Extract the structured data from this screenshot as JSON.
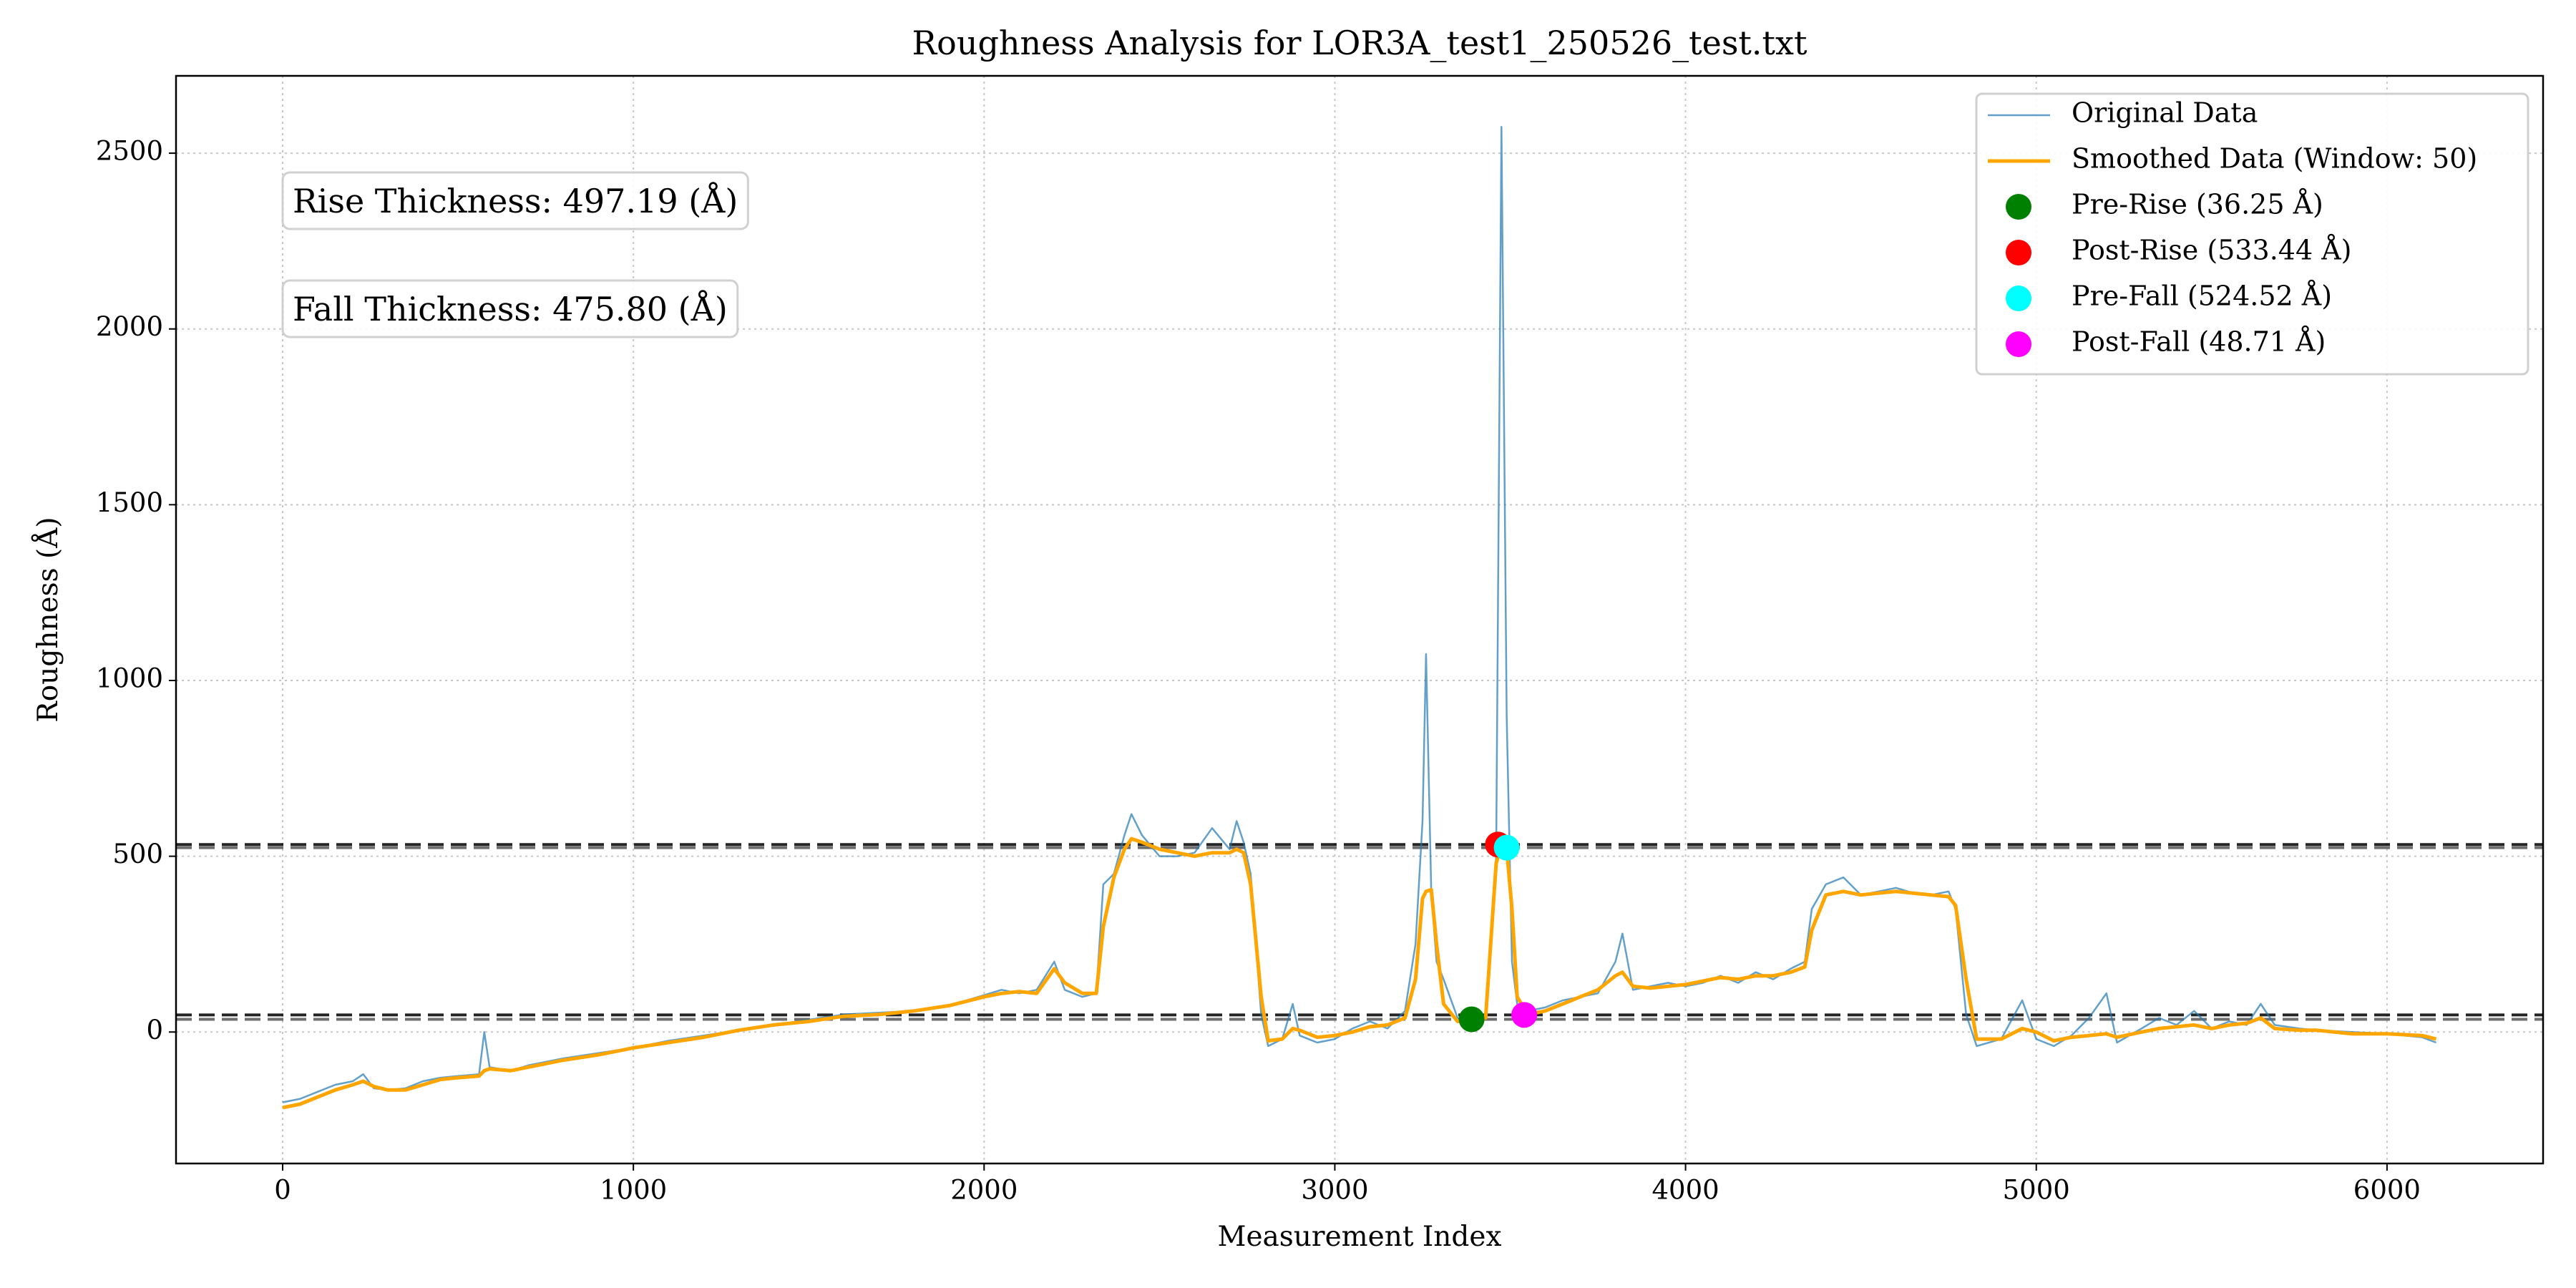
{
  "chart_data": {
    "type": "line",
    "title": "Roughness Analysis for LOR3A_test1_250526_test.txt",
    "x_label": "Measurement Index",
    "y_label": "Roughness (Å)",
    "xlim": [
      -304,
      6445
    ],
    "ylim": [
      -374,
      2720
    ],
    "xticks": [
      0,
      1000,
      2000,
      3000,
      4000,
      5000,
      6000
    ],
    "yticks": [
      0,
      500,
      1000,
      1500,
      2000,
      2500
    ],
    "grid": true,
    "legend": "upper right",
    "x": [
      0,
      50,
      100,
      150,
      200,
      230,
      260,
      300,
      350,
      400,
      450,
      500,
      560,
      575,
      590,
      650,
      700,
      800,
      900,
      1000,
      1100,
      1200,
      1300,
      1400,
      1500,
      1600,
      1700,
      1800,
      1900,
      2000,
      2050,
      2100,
      2150,
      2200,
      2230,
      2280,
      2320,
      2340,
      2370,
      2400,
      2420,
      2450,
      2500,
      2550,
      2600,
      2650,
      2700,
      2720,
      2740,
      2760,
      2790,
      2810,
      2850,
      2880,
      2900,
      2950,
      3000,
      3050,
      3100,
      3150,
      3200,
      3230,
      3250,
      3260,
      3275,
      3290,
      3310,
      3350,
      3390,
      3430,
      3460,
      3475,
      3490,
      3505,
      3520,
      3550,
      3600,
      3650,
      3700,
      3750,
      3800,
      3820,
      3850,
      3900,
      3950,
      4000,
      4050,
      4100,
      4150,
      4200,
      4250,
      4300,
      4340,
      4360,
      4400,
      4450,
      4500,
      4550,
      4600,
      4650,
      4700,
      4750,
      4770,
      4800,
      4830,
      4900,
      4960,
      5000,
      5050,
      5100,
      5150,
      5200,
      5230,
      5300,
      5350,
      5400,
      5450,
      5500,
      5550,
      5600,
      5640,
      5680,
      5750,
      5800,
      5900,
      6000,
      6100,
      6140
    ],
    "series": [
      {
        "name": "Original Data",
        "color": "#1f77b4",
        "values": [
          -200,
          -190,
          -170,
          -150,
          -140,
          -120,
          -160,
          -165,
          -160,
          -140,
          -130,
          -125,
          -120,
          0,
          -100,
          -110,
          -95,
          -75,
          -60,
          -45,
          -25,
          -10,
          5,
          20,
          35,
          50,
          55,
          60,
          75,
          105,
          120,
          110,
          120,
          200,
          120,
          100,
          110,
          420,
          450,
          560,
          620,
          560,
          500,
          500,
          510,
          580,
          520,
          600,
          540,
          450,
          50,
          -40,
          -20,
          80,
          -10,
          -30,
          -20,
          10,
          30,
          10,
          60,
          250,
          600,
          1075,
          400,
          200,
          150,
          40,
          36,
          40,
          500,
          2575,
          900,
          200,
          80,
          60,
          70,
          90,
          100,
          110,
          200,
          280,
          120,
          130,
          140,
          130,
          140,
          160,
          140,
          170,
          150,
          180,
          200,
          350,
          420,
          440,
          390,
          400,
          410,
          395,
          390,
          400,
          350,
          50,
          -40,
          -20,
          90,
          -20,
          -40,
          -10,
          40,
          110,
          -30,
          10,
          40,
          20,
          60,
          10,
          30,
          20,
          80,
          20,
          10,
          5,
          0,
          -5,
          -15,
          -30
        ]
      },
      {
        "name": "Smoothed Data (Window: 50)",
        "color": "#ffa500",
        "values": [
          -215,
          -205,
          -185,
          -165,
          -150,
          -140,
          -155,
          -165,
          -165,
          -150,
          -135,
          -130,
          -125,
          -110,
          -105,
          -110,
          -100,
          -80,
          -65,
          -45,
          -30,
          -15,
          5,
          20,
          30,
          45,
          50,
          60,
          75,
          100,
          110,
          115,
          110,
          180,
          140,
          110,
          110,
          300,
          440,
          520,
          550,
          540,
          520,
          510,
          500,
          510,
          510,
          520,
          510,
          420,
          100,
          -25,
          -20,
          10,
          5,
          -15,
          -10,
          0,
          15,
          20,
          40,
          150,
          380,
          400,
          405,
          250,
          80,
          30,
          36,
          40,
          480,
          530,
          520,
          350,
          100,
          50,
          60,
          80,
          100,
          120,
          160,
          170,
          130,
          125,
          130,
          135,
          145,
          155,
          150,
          160,
          160,
          170,
          185,
          290,
          390,
          400,
          390,
          395,
          400,
          395,
          390,
          385,
          360,
          150,
          -20,
          -20,
          10,
          0,
          -25,
          -15,
          -10,
          -5,
          -15,
          0,
          10,
          15,
          20,
          10,
          20,
          25,
          40,
          10,
          5,
          5,
          -5,
          -5,
          -10,
          -20
        ]
      }
    ],
    "markers": [
      {
        "name": "Pre-Rise (36.25 Å)",
        "color": "#008000",
        "x": 3390,
        "y": 36.25
      },
      {
        "name": "Post-Rise (533.44 Å)",
        "color": "#ff0000",
        "x": 3465,
        "y": 533.44
      },
      {
        "name": "Pre-Fall (524.52 Å)",
        "color": "#00ffff",
        "x": 3490,
        "y": 524.52
      },
      {
        "name": "Post-Fall (48.71 Å)",
        "color": "#ff00ff",
        "x": 3540,
        "y": 48.71
      }
    ],
    "annotations": [
      {
        "text": "Rise Thickness: 497.19 (Å)",
        "color": "#006400"
      },
      {
        "text": "Fall Thickness: 475.80 (Å)",
        "color": "#8b0000"
      }
    ]
  }
}
